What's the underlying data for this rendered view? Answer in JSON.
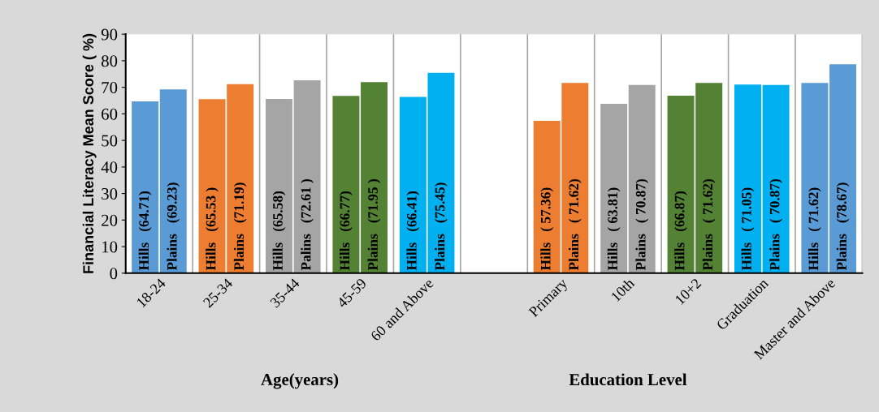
{
  "chart_data": {
    "type": "bar",
    "ylabel": "Financial Literacy Mean Score ( %)",
    "categories": [
      "18-24",
      "25-34",
      "35-44",
      "45-59",
      "60 and Above",
      null,
      "Primary",
      "10th",
      "10+2",
      "Graduation",
      "Master and Above"
    ],
    "series": [
      {
        "colors": [
          "#5b9bd5",
          "#ed7d31",
          "#a5a5a5",
          "#548235",
          "#00b0f0",
          null,
          "#ed7d31",
          "#a5a5a5",
          "#548235",
          "#00b0f0",
          "#5b9bd5"
        ],
        "values": [
          64.71,
          65.53,
          65.58,
          66.77,
          66.41,
          null,
          57.36,
          63.81,
          66.87,
          71.05,
          71.62
        ],
        "value_labels": [
          "Hills   (64.71)",
          "Hills   (65.53 )",
          "Hills   (65.58)",
          "Hills   (66.77)",
          "Hills   (66.41)",
          null,
          "Hills   ( 57.36)",
          "Hills   ( 63.81)",
          "Hills   (66.87)",
          "Hills   ( 71.05)",
          "Hills   ( 71.62)"
        ]
      },
      {
        "colors": [
          "#5b9bd5",
          "#ed7d31",
          "#a5a5a5",
          "#548235",
          "#00b0f0",
          null,
          "#ed7d31",
          "#a5a5a5",
          "#548235",
          "#00b0f0",
          "#5b9bd5"
        ],
        "values": [
          69.23,
          71.19,
          72.61,
          71.95,
          75.45,
          null,
          71.62,
          70.87,
          71.62,
          70.87,
          78.67
        ],
        "value_labels": [
          "Plains   (69.23)",
          "Plains   (71.19)",
          "Palins   (72.61 )",
          "Plains   (71.95 )",
          "Plains   (75.45)",
          null,
          "Plains   ( 71.62)",
          "Plains   ( 70.87)",
          "Plains   ( 71.62)",
          "Plains   ( 70.87)",
          "Plains   (78.67)"
        ]
      }
    ],
    "annotations": [
      "Age(years)",
      "Education Level"
    ],
    "ylim": [
      0,
      90
    ],
    "yticks": [
      0,
      10,
      20,
      30,
      40,
      50,
      60,
      70,
      80,
      90
    ],
    "grid": "x",
    "legend": false
  }
}
